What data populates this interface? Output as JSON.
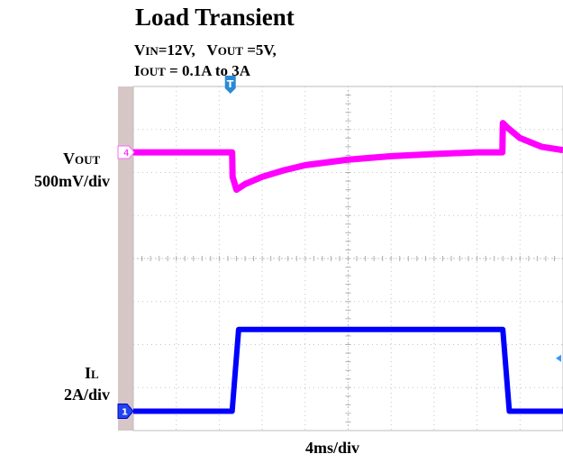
{
  "title": "Load Transient",
  "conditions": {
    "vin_main": "V",
    "vin_sub": "IN",
    "vin_value": "=12V,",
    "vout_main": "V",
    "vout_sub": "OUT",
    "vout_value": " =5V,",
    "iout_main": "I",
    "iout_sub": "OUT",
    "iout_value": " = 0.1A to 3A"
  },
  "channels": {
    "vout": {
      "name_main": "V",
      "name_sub": "OUT",
      "scale": "500mV/div",
      "marker": "4",
      "color": "#ff00ff"
    },
    "il": {
      "name_main": "I",
      "name_sub": "L",
      "scale": "2A/div",
      "marker": "1",
      "color": "#0000ff"
    }
  },
  "trigger_marker": "T",
  "timebase": "4ms/div",
  "chart_data": {
    "type": "line",
    "x_unit": "div",
    "x_range": [
      0,
      10
    ],
    "y_unit": "div",
    "y_range": [
      -4,
      4
    ],
    "grid": true,
    "series": [
      {
        "name": "VOUT",
        "x": [
          0,
          2.3,
          2.31,
          2.4,
          2.6,
          3.0,
          3.5,
          4.0,
          5.0,
          6.0,
          7.0,
          8.0,
          8.59,
          8.6,
          8.7,
          9.0,
          9.5,
          10.0
        ],
        "y": [
          2.47,
          2.47,
          1.9,
          1.6,
          1.73,
          1.9,
          2.05,
          2.17,
          2.3,
          2.38,
          2.43,
          2.47,
          2.47,
          3.15,
          3.05,
          2.8,
          2.6,
          2.52
        ]
      },
      {
        "name": "IL",
        "x": [
          0,
          2.3,
          2.45,
          8.6,
          8.75,
          10.0
        ],
        "y": [
          -3.55,
          -3.55,
          -1.65,
          -1.65,
          -3.55,
          -3.55
        ]
      }
    ]
  }
}
